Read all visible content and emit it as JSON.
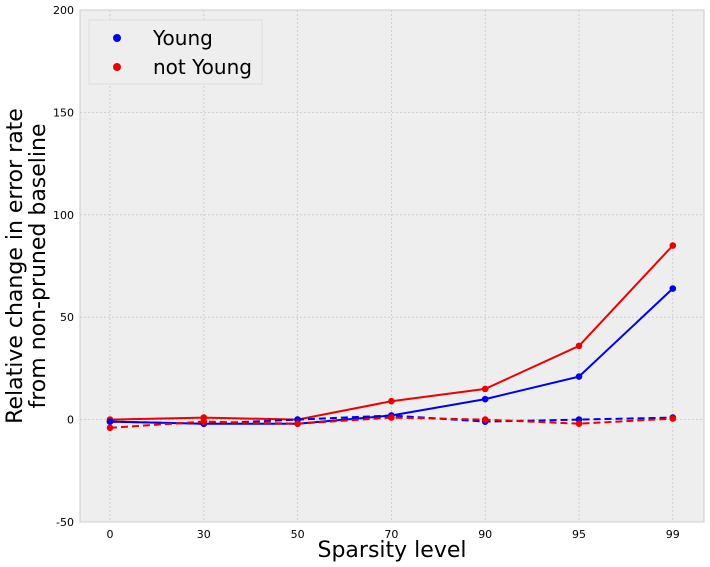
{
  "chart_data": {
    "type": "line",
    "categories": [
      "0",
      "30",
      "50",
      "70",
      "90",
      "95",
      "99"
    ],
    "xlabel": "Sparsity level",
    "ylabel_lines": [
      "Relative change in error rate",
      "from non-pruned baseline"
    ],
    "ylim": [
      -50,
      200
    ],
    "yticks": [
      -50,
      0,
      50,
      100,
      150,
      200
    ],
    "grid": true,
    "legend_position": "top-left",
    "legend": [
      {
        "label": "Young",
        "color": "#0000ee"
      },
      {
        "label": "not Young",
        "color": "#ee0000"
      }
    ],
    "series": [
      {
        "name": "Young (solid)",
        "group": "Young",
        "color": "#0000ee",
        "style": "solid",
        "values": [
          -1,
          -2,
          -2,
          2,
          10,
          21,
          64
        ]
      },
      {
        "name": "not Young (solid)",
        "group": "not Young",
        "color": "#ee0000",
        "style": "solid",
        "values": [
          0,
          1,
          0,
          9,
          15,
          36,
          85
        ]
      },
      {
        "name": "Young (dashed)",
        "group": "Young",
        "color": "#0000ee",
        "style": "dashed",
        "values": [
          -1,
          -2,
          0,
          2,
          -1,
          0,
          1
        ]
      },
      {
        "name": "not Young (dashed)",
        "group": "not Young",
        "color": "#ee0000",
        "style": "dashed",
        "values": [
          -4,
          -1,
          -2,
          1,
          0,
          -2,
          0.5
        ]
      }
    ]
  }
}
